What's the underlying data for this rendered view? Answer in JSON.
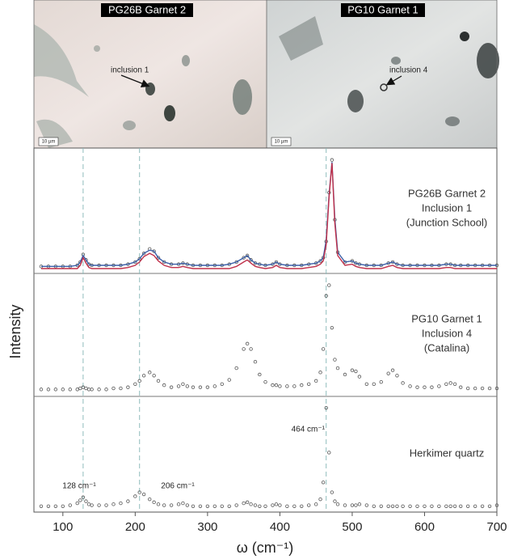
{
  "images": [
    {
      "title": "PG26B Garnet 2",
      "annotation": "inclusion 1",
      "scale_bar": "10 µm"
    },
    {
      "title": "PG10 Garnet 1",
      "annotation": "inclusion 4",
      "scale_bar": "10 µm"
    }
  ],
  "chart_data": {
    "type": "line",
    "xlabel": "ω (cm⁻¹)",
    "ylabel": "Intensity",
    "xlim": [
      60,
      700
    ],
    "xticks": [
      100,
      200,
      300,
      400,
      500,
      600,
      700
    ],
    "reference_lines": [
      {
        "value": 128,
        "label": "128 cm⁻¹"
      },
      {
        "value": 206,
        "label": "206 cm⁻¹"
      },
      {
        "value": 464,
        "label": "464 cm⁻¹"
      }
    ],
    "x": [
      70,
      80,
      90,
      100,
      110,
      120,
      124,
      128,
      132,
      136,
      140,
      150,
      160,
      170,
      180,
      190,
      200,
      206,
      212,
      220,
      226,
      232,
      240,
      250,
      260,
      266,
      272,
      280,
      290,
      300,
      310,
      320,
      330,
      340,
      350,
      355,
      360,
      366,
      372,
      380,
      390,
      395,
      400,
      410,
      420,
      430,
      440,
      450,
      456,
      460,
      464,
      468,
      472,
      476,
      480,
      490,
      500,
      505,
      510,
      520,
      530,
      540,
      550,
      556,
      562,
      570,
      580,
      590,
      600,
      610,
      620,
      630,
      636,
      642,
      650,
      660,
      670,
      680,
      690,
      700
    ],
    "panels": [
      {
        "label": [
          "PG26B Garnet 2",
          "Inclusion 1",
          "(Junction School)"
        ],
        "ylim": [
          0,
          105
        ],
        "series": [
          {
            "color": "#555555",
            "values": [
              2,
              2,
              2,
              2,
              2,
              3,
              6,
              13,
              8,
              4,
              3,
              3,
              3,
              3,
              3,
              4,
              6,
              9,
              14,
              18,
              16,
              10,
              6,
              4,
              4,
              5,
              4,
              3,
              3,
              3,
              3,
              3,
              4,
              6,
              10,
              12,
              8,
              5,
              4,
              3,
              4,
              6,
              4,
              3,
              3,
              3,
              4,
              5,
              7,
              10,
              25,
              70,
              100,
              45,
              15,
              6,
              7,
              5,
              4,
              3,
              3,
              3,
              5,
              6,
              4,
              3,
              3,
              3,
              3,
              3,
              3,
              4,
              4,
              3,
              3,
              3,
              3,
              3,
              3,
              3
            ]
          },
          {
            "color": "#3a5fa8",
            "values": [
              2,
              2,
              2,
              2,
              2,
              3,
              6,
              12,
              8,
              4,
              3,
              3,
              3,
              3,
              3,
              4,
              6,
              9,
              14,
              17,
              16,
              10,
              6,
              4,
              4,
              5,
              4,
              3,
              3,
              3,
              3,
              3,
              4,
              6,
              10,
              12,
              8,
              5,
              4,
              3,
              4,
              6,
              4,
              3,
              3,
              3,
              4,
              5,
              7,
              10,
              26,
              68,
              98,
              46,
              15,
              6,
              7,
              5,
              4,
              3,
              3,
              3,
              5,
              6,
              4,
              3,
              3,
              3,
              3,
              3,
              3,
              4,
              4,
              3,
              3,
              3,
              3,
              3,
              3,
              3
            ]
          },
          {
            "color": "#c0304a",
            "values": [
              0,
              0,
              0,
              0,
              0,
              0,
              3,
              10,
              5,
              1,
              0,
              0,
              0,
              0,
              0,
              1,
              3,
              6,
              11,
              14,
              12,
              7,
              3,
              1,
              1,
              2,
              1,
              0,
              0,
              0,
              0,
              0,
              0,
              2,
              6,
              8,
              5,
              2,
              1,
              0,
              1,
              3,
              1,
              0,
              0,
              0,
              1,
              2,
              4,
              7,
              22,
              66,
              97,
              42,
              12,
              3,
              4,
              2,
              1,
              0,
              0,
              0,
              2,
              3,
              1,
              0,
              0,
              0,
              0,
              0,
              0,
              1,
              1,
              0,
              0,
              0,
              0,
              0,
              0,
              0
            ]
          }
        ]
      },
      {
        "label": [
          "PG10 Garnet 1",
          "Inclusion 4",
          "(Catalina)"
        ],
        "ylim": [
          0,
          105
        ],
        "series": [
          {
            "color": "#555555",
            "values": [
              2,
              2,
              2,
              2,
              2,
              2,
              3,
              4,
              3,
              2,
              2,
              2,
              2,
              3,
              3,
              4,
              7,
              10,
              15,
              18,
              15,
              10,
              6,
              4,
              5,
              7,
              5,
              4,
              4,
              4,
              5,
              7,
              11,
              22,
              40,
              45,
              40,
              28,
              16,
              9,
              6,
              6,
              5,
              5,
              5,
              6,
              7,
              10,
              18,
              40,
              90,
              100,
              60,
              30,
              22,
              16,
              20,
              19,
              14,
              7,
              7,
              9,
              17,
              20,
              15,
              8,
              5,
              4,
              4,
              4,
              5,
              7,
              8,
              7,
              4,
              3,
              3,
              3,
              3,
              3
            ]
          }
        ]
      },
      {
        "label": [
          "Herkimer quartz"
        ],
        "ylim": [
          0,
          105
        ],
        "series": [
          {
            "color": "#555555",
            "values": [
              1,
              1,
              1,
              1,
              2,
              4,
              7,
              10,
              6,
              3,
              2,
              2,
              2,
              3,
              4,
              6,
              11,
              15,
              13,
              8,
              5,
              3,
              2,
              2,
              3,
              4,
              2,
              1,
              1,
              1,
              1,
              1,
              1,
              2,
              4,
              5,
              3,
              2,
              1,
              1,
              2,
              3,
              2,
              1,
              1,
              1,
              2,
              3,
              8,
              25,
              100,
              55,
              15,
              6,
              3,
              2,
              2,
              2,
              3,
              2,
              1,
              1,
              1,
              1,
              1,
              1,
              1,
              1,
              1,
              1,
              1,
              1,
              1,
              1,
              1,
              1,
              1,
              1,
              1,
              2
            ]
          }
        ]
      }
    ]
  }
}
